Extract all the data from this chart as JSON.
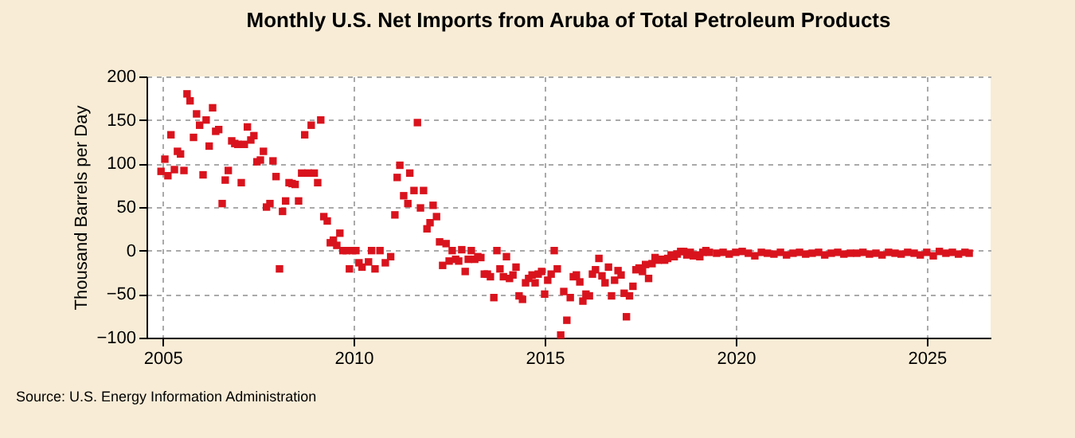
{
  "chart_data": {
    "type": "scatter",
    "title": "Monthly U.S. Net Imports from Aruba of Total Petroleum Products",
    "ylabel": "Thousand Barrels per Day",
    "annotations": [
      "Source: U.S. Energy Information Administration"
    ],
    "xlim": [
      2004.58,
      2026.67
    ],
    "xticks": [
      2005,
      2010,
      2015,
      2020,
      2025
    ],
    "ylim": [
      -100,
      200
    ],
    "yticks": [
      -100,
      -50,
      0,
      50,
      100,
      150,
      200
    ],
    "grid": true,
    "marker": "square",
    "series": [
      {
        "color": "#d9131d",
        "x": [
          2004.96,
          2005.06,
          2005.14,
          2005.22,
          2005.31,
          2005.39,
          2005.47,
          2005.56,
          2005.64,
          2005.72,
          2005.81,
          2005.89,
          2005.97,
          2006.06,
          2006.14,
          2006.22,
          2006.31,
          2006.39,
          2006.47,
          2006.56,
          2006.64,
          2006.72,
          2006.81,
          2006.89,
          2006.97,
          2007.06,
          2007.14,
          2007.22,
          2007.31,
          2007.39,
          2007.47,
          2007.56,
          2007.64,
          2007.72,
          2007.81,
          2007.89,
          2007.97,
          2008.06,
          2008.14,
          2008.22,
          2008.31,
          2008.39,
          2008.47,
          2008.56,
          2008.64,
          2008.72,
          2008.81,
          2008.89,
          2008.97,
          2009.06,
          2009.14,
          2009.22,
          2009.31,
          2009.39,
          2009.47,
          2009.56,
          2009.64,
          2009.72,
          2009.81,
          2009.89,
          2009.97,
          2010.06,
          2010.14,
          2010.22,
          2010.39,
          2010.47,
          2010.56,
          2010.69,
          2010.83,
          2010.97,
          2011.08,
          2011.14,
          2011.21,
          2011.31,
          2011.42,
          2011.47,
          2011.58,
          2011.67,
          2011.75,
          2011.83,
          2011.92,
          2012.0,
          2012.08,
          2012.17,
          2012.25,
          2012.33,
          2012.42,
          2012.5,
          2012.58,
          2012.67,
          2012.75,
          2012.83,
          2012.92,
          2013.0,
          2013.08,
          2013.17,
          2013.25,
          2013.33,
          2013.42,
          2013.5,
          2013.58,
          2013.67,
          2013.75,
          2013.83,
          2013.92,
          2014.0,
          2014.08,
          2014.17,
          2014.25,
          2014.33,
          2014.42,
          2014.5,
          2014.58,
          2014.67,
          2014.75,
          2014.83,
          2014.92,
          2015.0,
          2015.08,
          2015.17,
          2015.25,
          2015.33,
          2015.42,
          2015.5,
          2015.58,
          2015.67,
          2015.75,
          2015.83,
          2015.92,
          2016.0,
          2016.08,
          2016.17,
          2016.25,
          2016.33,
          2016.42,
          2016.5,
          2016.58,
          2016.67,
          2016.75,
          2016.83,
          2016.92,
          2017.0,
          2017.08,
          2017.14,
          2017.22,
          2017.31,
          2017.39,
          2017.47,
          2017.56,
          2017.64,
          2017.72,
          2017.81,
          2017.89,
          2017.97,
          2018.06,
          2018.14,
          2018.22,
          2018.31,
          2018.39,
          2018.47,
          2018.56,
          2018.64,
          2018.72,
          2018.81,
          2018.89,
          2018.97,
          2019.06,
          2019.14,
          2019.22,
          2019.31,
          2019.5,
          2019.67,
          2019.83,
          2020.0,
          2020.17,
          2020.33,
          2020.5,
          2020.67,
          2020.83,
          2021.0,
          2021.17,
          2021.33,
          2021.5,
          2021.67,
          2021.83,
          2022.0,
          2022.17,
          2022.33,
          2022.5,
          2022.67,
          2022.83,
          2023.0,
          2023.17,
          2023.33,
          2023.5,
          2023.67,
          2023.83,
          2024.0,
          2024.17,
          2024.33,
          2024.5,
          2024.67,
          2024.83,
          2025.0,
          2025.17,
          2025.33,
          2025.5,
          2025.67,
          2025.83,
          2026.0,
          2026.11
        ],
        "values": [
          91,
          105,
          86,
          133,
          93,
          114,
          111,
          92,
          180,
          172,
          130,
          157,
          144,
          87,
          150,
          120,
          164,
          137,
          139,
          54,
          81,
          92,
          126,
          123,
          122,
          78,
          122,
          142,
          127,
          132,
          102,
          104,
          114,
          50,
          54,
          103,
          85,
          -21,
          45,
          57,
          78,
          77,
          76,
          57,
          89,
          133,
          89,
          144,
          89,
          78,
          150,
          39,
          34,
          9,
          12,
          6,
          20,
          0,
          0,
          -21,
          0,
          0,
          -14,
          -19,
          -13,
          0,
          -21,
          0,
          -14,
          -7,
          41,
          84,
          98,
          63,
          54,
          89,
          69,
          147,
          49,
          69,
          25,
          32,
          52,
          39,
          10,
          -17,
          8,
          -12,
          0,
          -10,
          -12,
          1,
          -24,
          -10,
          0,
          -10,
          -7,
          -8,
          -27,
          -27,
          -30,
          -54,
          0,
          -21,
          -30,
          -7,
          -32,
          -28,
          -19,
          -52,
          -56,
          -37,
          -32,
          -28,
          -37,
          -27,
          -24,
          -50,
          -34,
          -27,
          0,
          -21,
          -97,
          -47,
          -80,
          -54,
          -30,
          -28,
          -36,
          -58,
          -50,
          -52,
          -27,
          -22,
          -9,
          -29,
          -37,
          -19,
          -52,
          -34,
          -23,
          -28,
          -49,
          -76,
          -52,
          -41,
          -22,
          -20,
          -24,
          -16,
          -32,
          -15,
          -8,
          -11,
          -10,
          -11,
          -9,
          -5,
          -7,
          -4,
          -1,
          -1,
          -5,
          -2,
          -6,
          -5,
          -7,
          -2,
          0,
          -2,
          -3,
          -2,
          -4,
          -2,
          -1,
          -3,
          -6,
          -2,
          -3,
          -4,
          -2,
          -5,
          -3,
          -2,
          -4,
          -3,
          -2,
          -5,
          -3,
          -2,
          -4,
          -3,
          -3,
          -2,
          -4,
          -3,
          -5,
          -2,
          -3,
          -4,
          -2,
          -3,
          -5,
          -2,
          -6,
          -1,
          -3,
          -2,
          -4,
          -2,
          -3
        ]
      }
    ]
  }
}
